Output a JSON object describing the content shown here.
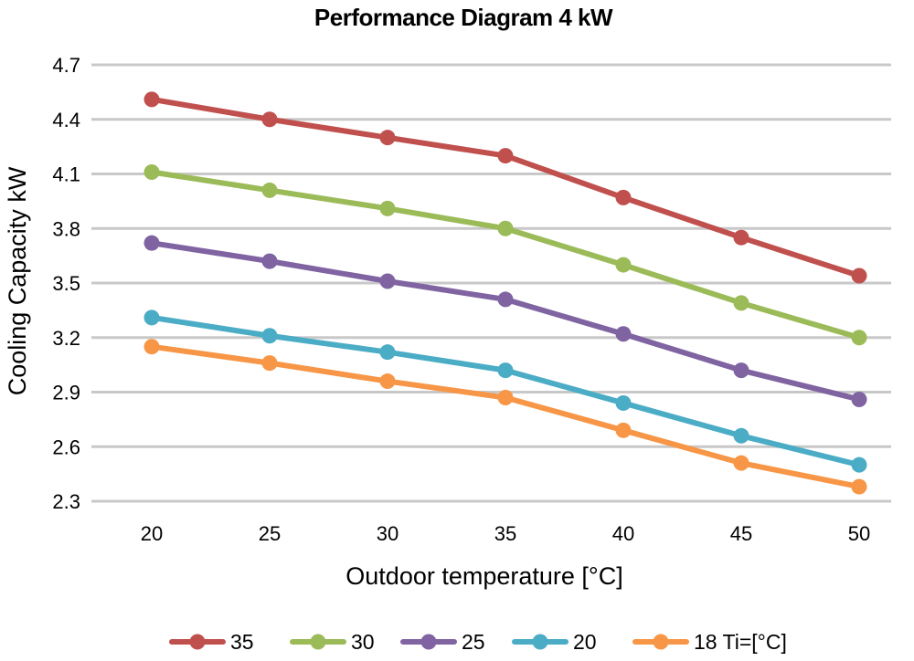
{
  "chart_data": {
    "type": "line",
    "title": "Performance Diagram 4 kW",
    "xlabel": "Outdoor temperature [°C]",
    "ylabel": "Cooling Capacity kW",
    "categories": [
      "20",
      "25",
      "30",
      "35",
      "40",
      "45",
      "50"
    ],
    "x": [
      20,
      25,
      30,
      35,
      40,
      45,
      50
    ],
    "ylim": [
      2.3,
      4.7
    ],
    "yticks": [
      2.3,
      2.6,
      2.9,
      3.2,
      3.5,
      3.8,
      4.1,
      4.4,
      4.7
    ],
    "ytick_labels": [
      "2.3",
      "2.6",
      "2.9",
      "3.2",
      "3.5",
      "3.8",
      "4.1",
      "4.4",
      "4.7"
    ],
    "grid": true,
    "legend_position": "bottom",
    "series": [
      {
        "name": "35",
        "color": "#c0504d",
        "values": [
          4.51,
          4.4,
          4.3,
          4.2,
          3.97,
          3.75,
          3.54
        ]
      },
      {
        "name": "30",
        "color": "#9bbb59",
        "values": [
          4.11,
          4.01,
          3.91,
          3.8,
          3.6,
          3.39,
          3.2
        ]
      },
      {
        "name": "25",
        "color": "#8064a2",
        "values": [
          3.72,
          3.62,
          3.51,
          3.41,
          3.22,
          3.02,
          2.86
        ]
      },
      {
        "name": "20",
        "color": "#4bacc6",
        "values": [
          3.31,
          3.21,
          3.12,
          3.02,
          2.84,
          2.66,
          2.5
        ]
      },
      {
        "name": "18 Ti=[°C]",
        "color": "#f79646",
        "values": [
          3.15,
          3.06,
          2.96,
          2.87,
          2.69,
          2.51,
          2.38
        ]
      }
    ]
  }
}
